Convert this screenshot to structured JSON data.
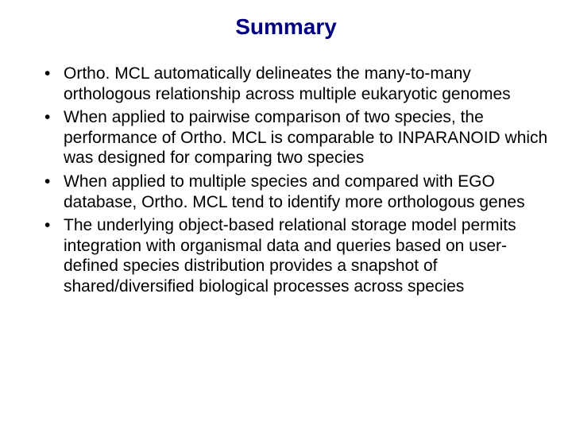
{
  "slide": {
    "title": "Summary",
    "title_color": "#000080",
    "title_fontsize": 28,
    "body_fontsize": 21,
    "body_color": "#000000",
    "background_color": "#ffffff",
    "bullets": [
      "Ortho. MCL automatically delineates the many-to-many orthologous relationship across multiple eukaryotic genomes",
      "When applied to pairwise comparison of two species, the performance of Ortho. MCL is comparable to INPARANOID which was designed for comparing two species",
      "When applied to multiple species and compared with EGO database, Ortho. MCL tend to identify more orthologous genes",
      "The underlying object-based relational storage model permits integration with organismal data and queries based on user-defined species distribution provides a snapshot of shared/diversified biological processes across species"
    ]
  }
}
